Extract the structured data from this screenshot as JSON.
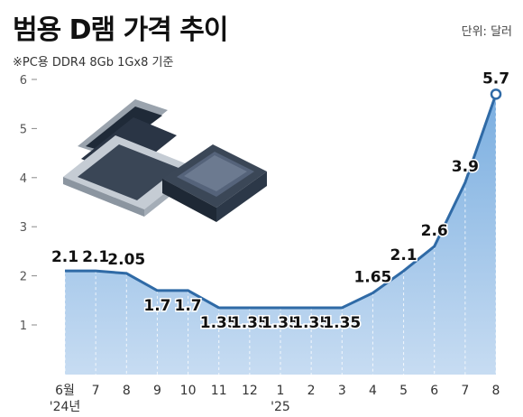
{
  "title": "범용 D램 가격 추이",
  "unit_label": "단위: 달러",
  "subtitle": "※PC용 DDR4 8Gb 1Gx8 기준",
  "colors": {
    "line": "#2f6aa6",
    "area_top": "#7aaee0",
    "area_bottom": "#c7dcf2",
    "grid": "#dde6f0",
    "text": "#111111"
  },
  "chart_data": {
    "type": "area",
    "title": "범용 D램 가격 추이",
    "unit": "단위: 달러",
    "note": "※PC용 DDR4 8Gb 1Gx8 기준",
    "categories": [
      "6월",
      "7",
      "8",
      "9",
      "10",
      "11",
      "12",
      "1",
      "2",
      "3",
      "4",
      "5",
      "6",
      "7",
      "8"
    ],
    "year_labels": [
      "'24년",
      "",
      "",
      "",
      "",
      "",
      "",
      "'25",
      "",
      "",
      "",
      "",
      "",
      "",
      ""
    ],
    "values": [
      2.1,
      2.1,
      2.05,
      1.7,
      1.7,
      1.35,
      1.35,
      1.35,
      1.35,
      1.35,
      1.65,
      2.1,
      2.6,
      3.9,
      5.7
    ],
    "value_labels": [
      "2.1",
      "2.1",
      "2.05",
      "1.7",
      "1.7",
      "1.35",
      "1.35",
      "1.35",
      "1.35",
      "1.35",
      "1.65",
      "2.1",
      "2.6",
      "3.9",
      "5.7"
    ],
    "yticks": [
      1,
      2,
      3,
      4,
      5,
      6
    ],
    "ylim": [
      0,
      6
    ],
    "grid": false
  }
}
